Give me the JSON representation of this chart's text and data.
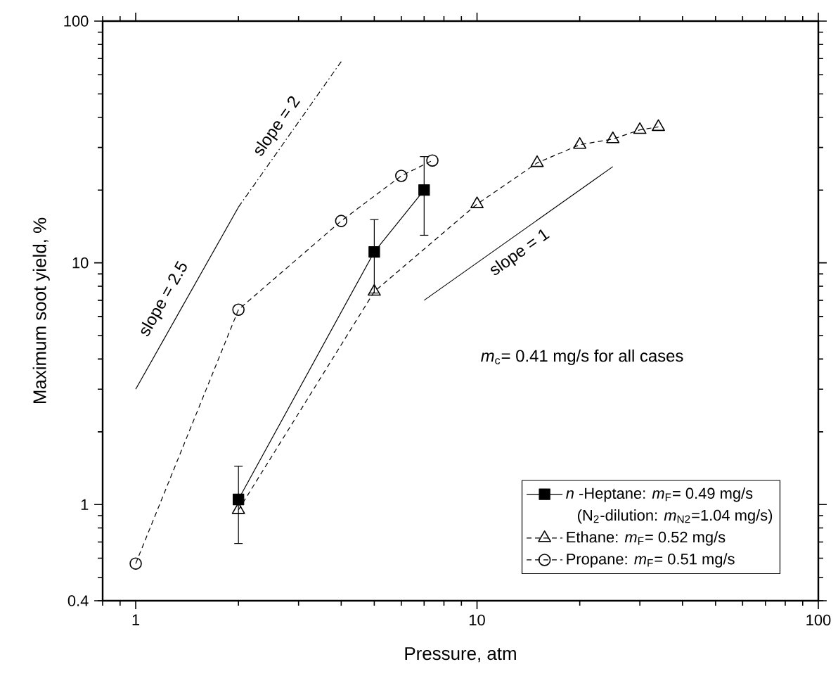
{
  "chart_data": {
    "type": "line",
    "xlabel": "Pressure, atm",
    "ylabel": "Maximum soot yield, %",
    "log": "xy",
    "xlim": [
      0.8,
      100
    ],
    "ylim": [
      0.4,
      100
    ],
    "xticks": [
      1,
      10,
      100
    ],
    "yticks": [
      0.4,
      1,
      10,
      100
    ],
    "legend": "bottom right",
    "grid": false,
    "series": [
      {
        "name": "*n* -Heptane: *m*$_{F}$= 0.49 mg/s",
        "color": "#000000",
        "marker": "square",
        "line_style": "solid",
        "x": [
          2,
          5,
          7
        ],
        "values": [
          1.05,
          11.1,
          20
        ],
        "errors": [
          [
            0.69,
            1.44
          ],
          [
            7.5,
            15.1
          ],
          [
            13,
            27.5
          ]
        ]
      },
      {
        "name": "Ethane: *m*$_{F}$= 0.52 mg/s",
        "color": "#000000",
        "marker": "triangle",
        "line_style": "dashed",
        "x": [
          2,
          5,
          10,
          15,
          20,
          25,
          30,
          34
        ],
        "values": [
          0.95,
          7.6,
          17.5,
          25.9,
          30.8,
          32.5,
          35.5,
          36.5
        ]
      },
      {
        "name": "Propane: *m*$_{F}$= 0.51 mg/s",
        "color": "#000000",
        "marker": "circle",
        "line_style": "dashed",
        "x": [
          1,
          2,
          4,
          6,
          7.4
        ],
        "values": [
          0.57,
          6.4,
          14.9,
          22.9,
          26.5
        ]
      },
      {
        "color": "#000000",
        "marker": "none",
        "line_style": "solid",
        "x": [
          1,
          2
        ],
        "values": [
          3,
          17
        ]
      },
      {
        "color": "#000000",
        "marker": "none",
        "line_style": "dotted",
        "x": [
          2,
          4
        ],
        "values": [
          17,
          68
        ]
      },
      {
        "color": "#000000",
        "marker": "none",
        "line_style": "solid",
        "x": [
          7,
          25
        ],
        "values": [
          7,
          25
        ]
      }
    ],
    "annotations": [
      "slope = 2.5",
      "slope = 2",
      "slope = 1",
      "*m*$_{c}$= 0.41 mg/s for all cases",
      "(N$_{2}$-dilution: *m*$_{N2}$=1.04 mg/s)"
    ]
  }
}
